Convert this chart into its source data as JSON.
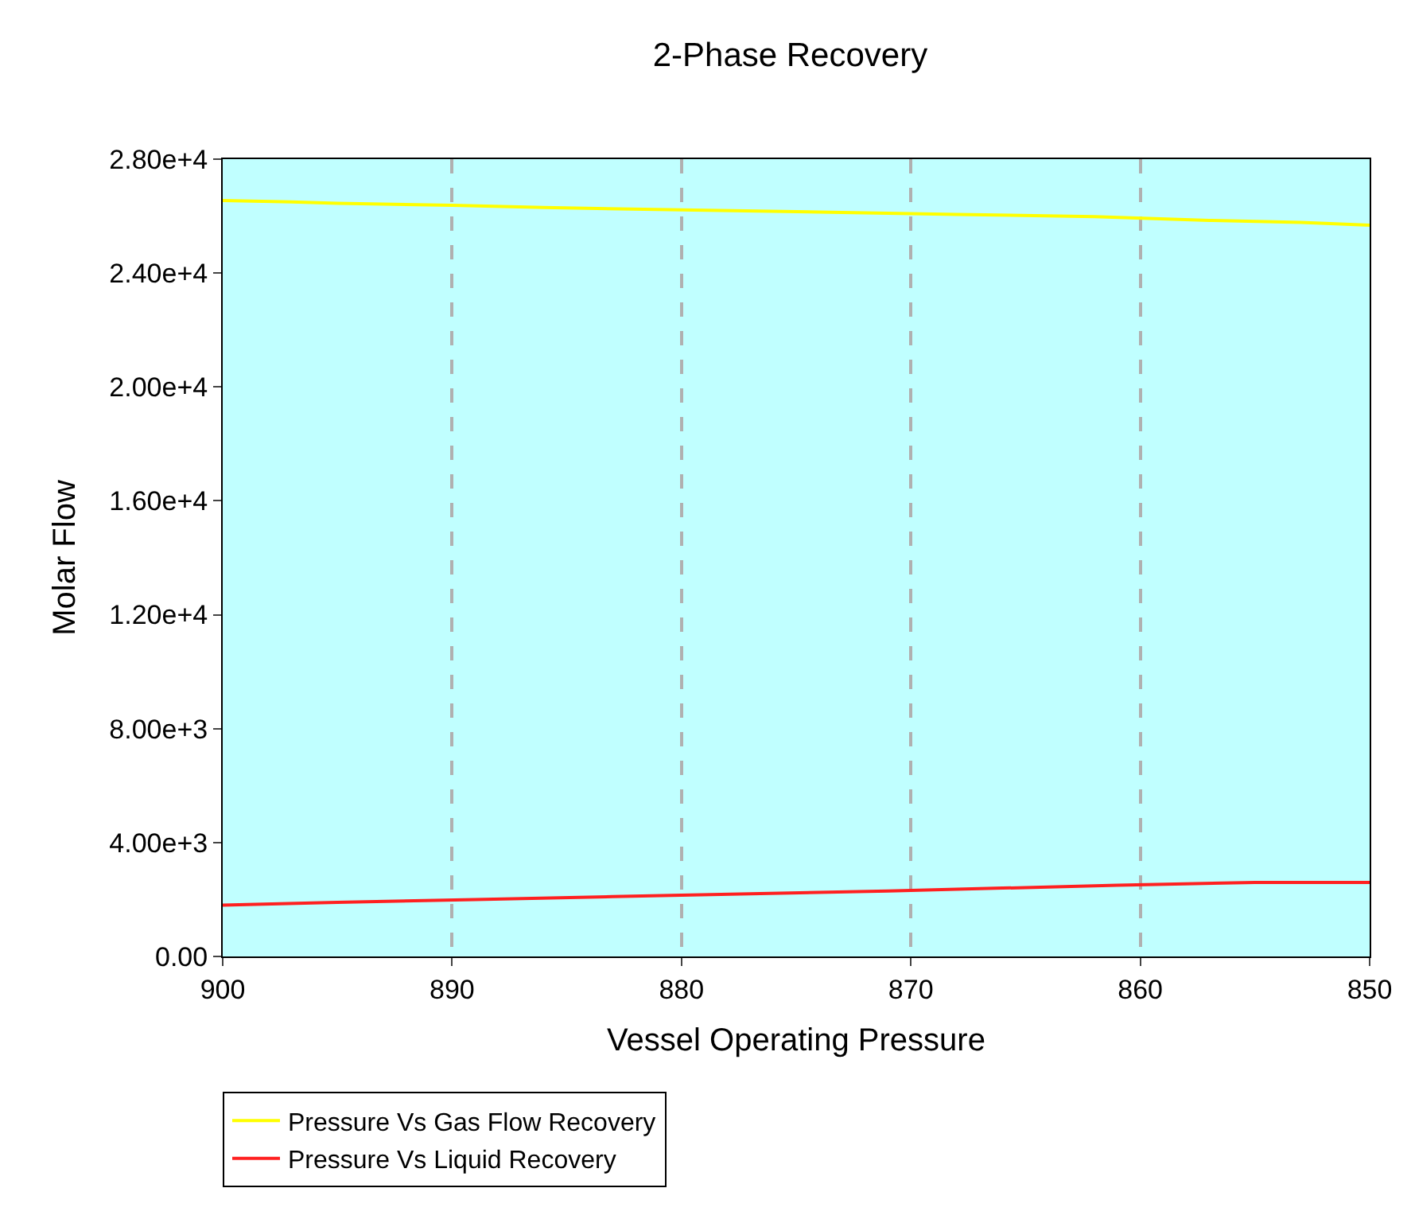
{
  "chart_data": {
    "type": "line",
    "title": "2-Phase Recovery",
    "xlabel": "Vessel Operating Pressure",
    "ylabel": "Molar Flow",
    "xlim": [
      900,
      850
    ],
    "xticks": [
      900,
      890,
      880,
      870,
      860,
      850
    ],
    "ylim": [
      0,
      28000
    ],
    "yticks": [
      {
        "value": 0,
        "label": "0.00"
      },
      {
        "value": 4000,
        "label": "4.00e+3"
      },
      {
        "value": 8000,
        "label": "8.00e+3"
      },
      {
        "value": 12000,
        "label": "1.20e+4"
      },
      {
        "value": 16000,
        "label": "1.60e+4"
      },
      {
        "value": 20000,
        "label": "2.00e+4"
      },
      {
        "value": 24000,
        "label": "2.40e+4"
      },
      {
        "value": 28000,
        "label": "2.80e+4"
      }
    ],
    "grid": "x",
    "legend": "bottom left",
    "series": [
      {
        "name": "Pressure Vs Gas Flow Recovery",
        "color": "#ffff00",
        "x": [
          900,
          897,
          895,
          890,
          886,
          880,
          874,
          868,
          862,
          857,
          853,
          850
        ],
        "values": [
          26550,
          26500,
          26450,
          26380,
          26300,
          26220,
          26140,
          26060,
          25980,
          25850,
          25780,
          25680
        ]
      },
      {
        "name": "Pressure Vs Liquid Recovery",
        "color": "#ff2020",
        "x": [
          900,
          895,
          889,
          883,
          877,
          871,
          866,
          861,
          855,
          850
        ],
        "values": [
          1800,
          1900,
          2000,
          2100,
          2200,
          2300,
          2400,
          2500,
          2600,
          2600
        ]
      }
    ]
  }
}
